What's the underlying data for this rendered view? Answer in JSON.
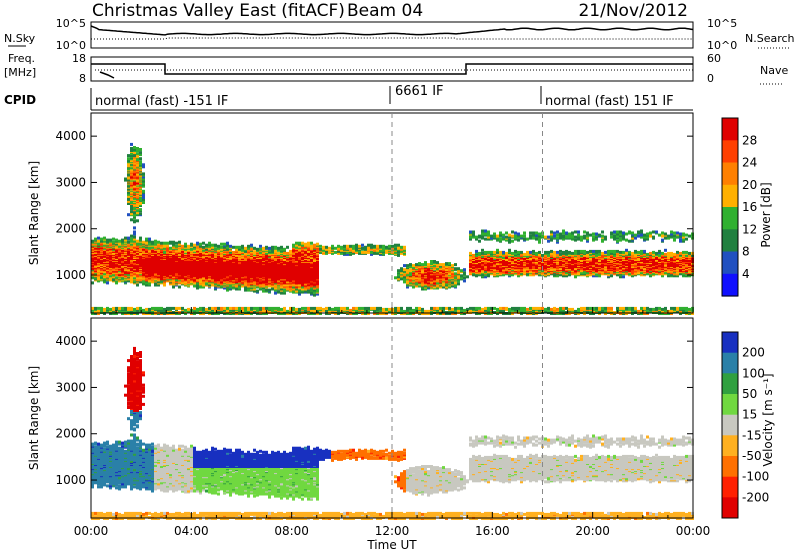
{
  "header": {
    "title": "Christmas Valley East (fitACF)",
    "beam": "Beam 04",
    "date": "21/Nov/2012"
  },
  "noise_panel": {
    "left_label": "N.Sky",
    "left_ticks": [
      "10^5",
      "10^0"
    ],
    "right_label": "N.Search",
    "right_ticks": [
      "10^5",
      "10^0"
    ]
  },
  "freq_panel": {
    "left_label_1": "Freq.",
    "left_label_2": "[MHz]",
    "left_ticks": [
      "18",
      "8"
    ],
    "right_label": "Nave",
    "right_ticks": [
      "60",
      "0"
    ]
  },
  "cpid_panel": {
    "label": "CPID",
    "segments": [
      "normal (fast) -151 IF",
      "6661 IF",
      "normal (fast) 151 IF"
    ]
  },
  "chart_data": [
    {
      "type": "heatmap",
      "panel": "power",
      "ylabel": "Slant Range [km]",
      "yticks": [
        1000,
        2000,
        3000,
        4000
      ],
      "ylim": [
        180,
        4500
      ],
      "x_range_hours": [
        0,
        24
      ],
      "dashed_times": [
        "12:00",
        "18:00"
      ],
      "colorbar": {
        "label": "Power [dB]",
        "ticks": [
          "28",
          "24",
          "20",
          "16",
          "12",
          "8",
          "4"
        ],
        "colors": [
          "#e00000",
          "#ff4000",
          "#ff8000",
          "#ffb000",
          "#30b030",
          "#208040",
          "#2050c0",
          "#1010ff"
        ]
      }
    },
    {
      "type": "heatmap",
      "panel": "velocity",
      "ylabel": "Slant Range [km]",
      "yticks": [
        1000,
        2000,
        3000,
        4000
      ],
      "ylim": [
        180,
        4500
      ],
      "x_range_hours": [
        0,
        24
      ],
      "dashed_times": [
        "12:00",
        "18:00"
      ],
      "colorbar": {
        "label": "Velocity [m s⁻¹]",
        "ticks": [
          "200",
          "100",
          "50",
          "15",
          "-15",
          "-50",
          "-100",
          "-200"
        ],
        "colors": [
          "#1830c0",
          "#2a80a8",
          "#30a040",
          "#70d840",
          "#c8c8c0",
          "#ffb020",
          "#ff7000",
          "#ff2000",
          "#e00000"
        ]
      }
    }
  ],
  "xaxis": {
    "ticks": [
      "00:00",
      "04:00",
      "08:00",
      "12:00",
      "16:00",
      "20:00",
      "00:00"
    ],
    "label": "Time UT"
  }
}
